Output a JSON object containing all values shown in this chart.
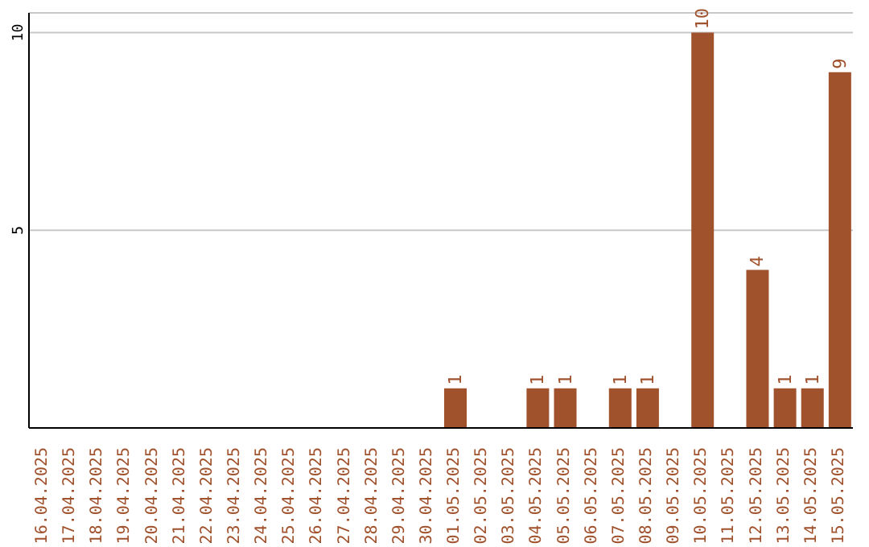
{
  "chart_data": {
    "type": "bar",
    "categories": [
      "16.04.2025",
      "17.04.2025",
      "18.04.2025",
      "19.04.2025",
      "20.04.2025",
      "21.04.2025",
      "22.04.2025",
      "23.04.2025",
      "24.04.2025",
      "25.04.2025",
      "26.04.2025",
      "27.04.2025",
      "28.04.2025",
      "29.04.2025",
      "30.04.2025",
      "01.05.2025",
      "02.05.2025",
      "03.05.2025",
      "04.05.2025",
      "05.05.2025",
      "06.05.2025",
      "07.05.2025",
      "08.05.2025",
      "09.05.2025",
      "10.05.2025",
      "11.05.2025",
      "12.05.2025",
      "13.05.2025",
      "14.05.2025",
      "15.05.2025"
    ],
    "values": [
      0,
      0,
      0,
      0,
      0,
      0,
      0,
      0,
      0,
      0,
      0,
      0,
      0,
      0,
      0,
      1,
      0,
      0,
      1,
      1,
      0,
      1,
      1,
      0,
      10,
      0,
      4,
      1,
      1,
      9
    ],
    "value_labels": [
      null,
      null,
      null,
      null,
      null,
      null,
      null,
      null,
      null,
      null,
      null,
      null,
      null,
      null,
      null,
      "1",
      null,
      null,
      "1",
      "1",
      null,
      "1",
      "1",
      null,
      "10",
      null,
      "4",
      "1",
      "1",
      "9"
    ],
    "color": "#a0522d",
    "ylim": [
      0,
      10.5
    ],
    "yticks": [
      5,
      10
    ],
    "grid": "y"
  }
}
